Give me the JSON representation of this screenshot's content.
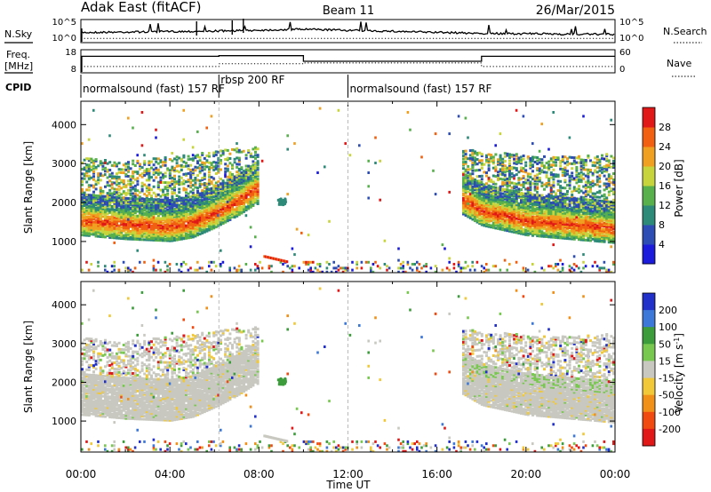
{
  "header": {
    "title": "Adak East (fitACF)",
    "beam": "Beam 11",
    "date": "26/Mar/2015"
  },
  "side_labels": {
    "nsky": "N.Sky",
    "nsearch": "N.Search",
    "freq": "Freq.",
    "mhz": "[MHz]",
    "nave": "Nave",
    "cpid": "CPID"
  },
  "chart_data": [
    {
      "type": "line",
      "panel": "noise",
      "left_ticks": [
        "10^5",
        "10^0"
      ],
      "right_ticks": [
        "10^5",
        "10^0"
      ],
      "series": [
        {
          "name": "N.Sky",
          "style": "solid",
          "x": [
            0,
            6,
            10,
            18,
            24
          ],
          "y": [
            2.2,
            2.5,
            2.9,
            2.0,
            1.8
          ]
        },
        {
          "name": "N.Search",
          "style": "dotted",
          "x": [
            0,
            24
          ],
          "y": [
            0.9,
            0.9
          ]
        }
      ]
    },
    {
      "type": "line",
      "panel": "frequency",
      "left_ticks": [
        "18",
        "8"
      ],
      "right_ticks": [
        "60",
        "0"
      ],
      "series": [
        {
          "name": "Freq.",
          "style": "solid",
          "x": [
            0,
            6.2,
            6.2,
            10,
            10,
            18,
            18,
            24
          ],
          "y": [
            16,
            16,
            16.4,
            16.4,
            13,
            13,
            16,
            16
          ]
        },
        {
          "name": "Nave",
          "style": "dotted",
          "x": [
            0,
            6.2,
            6.2,
            10,
            10,
            18,
            18,
            24
          ],
          "y": [
            9.8,
            9.8,
            11.5,
            11.5,
            12,
            12,
            9.8,
            9.8
          ]
        }
      ]
    },
    {
      "type": "table",
      "panel": "cpid",
      "segments": [
        {
          "start": 0,
          "end": 6.2,
          "label": "normalsound (fast) 157 RF"
        },
        {
          "start": 6.2,
          "end": 12,
          "label": "rbsp 200 RF"
        },
        {
          "start": 12,
          "end": 24,
          "label": "normalsound (fast) 157 RF"
        }
      ]
    },
    {
      "type": "heatmap",
      "panel": "power",
      "ylabel": "Slant Range [km]",
      "ylim": [
        200,
        4600
      ],
      "yticks": [
        1000,
        2000,
        3000,
        4000
      ],
      "xlim": [
        0,
        24
      ],
      "colorbar": {
        "label": "Power [dB]",
        "ticks": [
          "4",
          "8",
          "12",
          "16",
          "20",
          "24",
          "28"
        ],
        "colors": [
          "#1b1bdc",
          "#2d4db4",
          "#2e8a78",
          "#58b04c",
          "#c8d43c",
          "#f0a020",
          "#f06010",
          "#e01818"
        ]
      },
      "features": [
        {
          "kind": "core_band",
          "x": [
            0,
            2,
            4,
            5,
            6,
            7,
            7.8
          ],
          "y": [
            1450,
            1350,
            1300,
            1400,
            1650,
            1950,
            2250
          ]
        },
        {
          "kind": "core_band",
          "x": [
            17.1,
            18,
            20,
            22,
            24
          ],
          "y": [
            2000,
            1700,
            1450,
            1350,
            1250
          ]
        },
        {
          "kind": "scatter_region",
          "x": [
            0,
            2,
            4,
            6,
            8
          ],
          "y": [
            2700,
            2600,
            2700,
            2850,
            3000
          ]
        },
        {
          "kind": "scatter_region",
          "x": [
            17,
            19,
            21,
            23,
            24
          ],
          "y": [
            2900,
            2800,
            2700,
            2750,
            2800
          ]
        }
      ]
    },
    {
      "type": "heatmap",
      "panel": "velocity",
      "ylabel": "Slant Range [km]",
      "ylim": [
        200,
        4600
      ],
      "yticks": [
        1000,
        2000,
        3000,
        4000
      ],
      "xlim": [
        0,
        24
      ],
      "xticks": [
        "00:00",
        "04:00",
        "08:00",
        "12:00",
        "16:00",
        "20:00",
        "00:00"
      ],
      "xlabel": "Time UT",
      "colorbar": {
        "label": "Velocity [m s",
        "label_sup": "-1",
        "label_end": "]",
        "ticks": [
          "200",
          "100",
          "50",
          "15",
          "-15",
          "-50",
          "-100",
          "-200"
        ],
        "colors": [
          "#2030c8",
          "#3c78d8",
          "#3c9c3c",
          "#78c850",
          "#c8c8c0",
          "#f0c838",
          "#f09018",
          "#f04a10",
          "#e01818"
        ]
      },
      "features": [
        {
          "kind": "ground_scatter",
          "x": [
            0,
            2,
            4,
            6,
            8
          ],
          "y": [
            1500,
            1400,
            1500,
            1800,
            2400
          ]
        },
        {
          "kind": "ground_scatter",
          "x": [
            17.1,
            18,
            20,
            22,
            24
          ],
          "y": [
            1900,
            1600,
            1450,
            1350,
            1300
          ]
        }
      ]
    }
  ]
}
